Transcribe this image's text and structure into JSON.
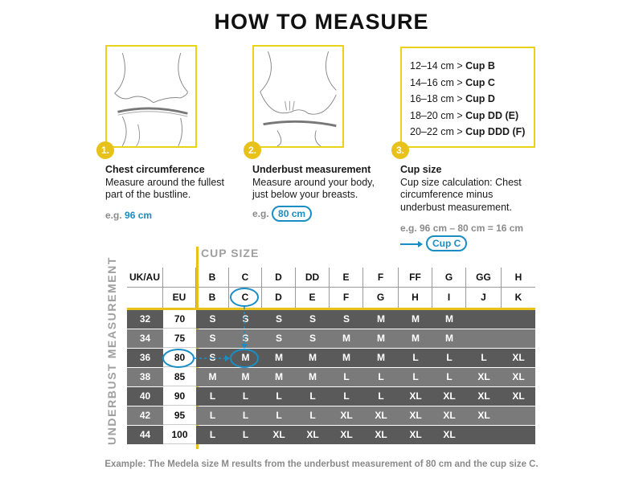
{
  "title": "HOW TO MEASURE",
  "steps": [
    {
      "num": "1.",
      "heading": "Chest circumference",
      "text": "Measure around the fullest part of the bustline.",
      "eg_prefix": "e.g.",
      "eg_value": "96 cm"
    },
    {
      "num": "2.",
      "heading": "Underbust measurement",
      "text": "Measure around your body, just below your breasts.",
      "eg_prefix": "e.g.",
      "eg_value": "80 cm"
    },
    {
      "num": "3.",
      "heading": "Cup size",
      "text": "Cup size calculation: Chest circumference minus underbust measurement.",
      "eg_prefix": "e.g. 96 cm – 80 cm = 16 cm",
      "eg_value": "Cup C"
    }
  ],
  "cup_list": [
    {
      "range": "12–14 cm > ",
      "cup": "Cup B"
    },
    {
      "range": "14–16 cm > ",
      "cup": "Cup C"
    },
    {
      "range": "16–18 cm > ",
      "cup": "Cup D"
    },
    {
      "range": "18–20 cm > ",
      "cup": "Cup DD (E)"
    },
    {
      "range": "20–22 cm > ",
      "cup": "Cup DDD (F)"
    }
  ],
  "cup_size_label": "CUP SIZE",
  "underbust_label": "UNDERBUST MEASUREMENT",
  "table": {
    "uk_header": [
      "UK/AU",
      "",
      "B",
      "C",
      "D",
      "DD",
      "E",
      "F",
      "FF",
      "G",
      "GG",
      "H"
    ],
    "eu_header": [
      "",
      "EU",
      "B",
      "C",
      "D",
      "E",
      "F",
      "G",
      "H",
      "I",
      "J",
      "K"
    ],
    "rows": [
      {
        "uk": "32",
        "eu": "70",
        "sizes": [
          "S",
          "S",
          "S",
          "S",
          "S",
          "M",
          "M",
          "M",
          "",
          ""
        ]
      },
      {
        "uk": "34",
        "eu": "75",
        "sizes": [
          "S",
          "S",
          "S",
          "S",
          "M",
          "M",
          "M",
          "M",
          "",
          ""
        ]
      },
      {
        "uk": "36",
        "eu": "80",
        "sizes": [
          "S",
          "M",
          "M",
          "M",
          "M",
          "M",
          "L",
          "L",
          "L",
          "XL"
        ]
      },
      {
        "uk": "38",
        "eu": "85",
        "sizes": [
          "M",
          "M",
          "M",
          "M",
          "L",
          "L",
          "L",
          "L",
          "XL",
          "XL"
        ]
      },
      {
        "uk": "40",
        "eu": "90",
        "sizes": [
          "L",
          "L",
          "L",
          "L",
          "L",
          "L",
          "XL",
          "XL",
          "XL",
          "XL"
        ]
      },
      {
        "uk": "42",
        "eu": "95",
        "sizes": [
          "L",
          "L",
          "L",
          "L",
          "XL",
          "XL",
          "XL",
          "XL",
          "XL",
          ""
        ]
      },
      {
        "uk": "44",
        "eu": "100",
        "sizes": [
          "L",
          "L",
          "XL",
          "XL",
          "XL",
          "XL",
          "XL",
          "XL",
          "",
          ""
        ]
      }
    ]
  },
  "footer": "Example: The Medela size M results from the underbust measurement of 80 cm and the cup size C.",
  "colors": {
    "accent_yellow": "#e8c21a",
    "highlight_blue": "#1a8ec4",
    "row_dark": "#5a5a5a",
    "row_light": "#7a7a7a"
  }
}
